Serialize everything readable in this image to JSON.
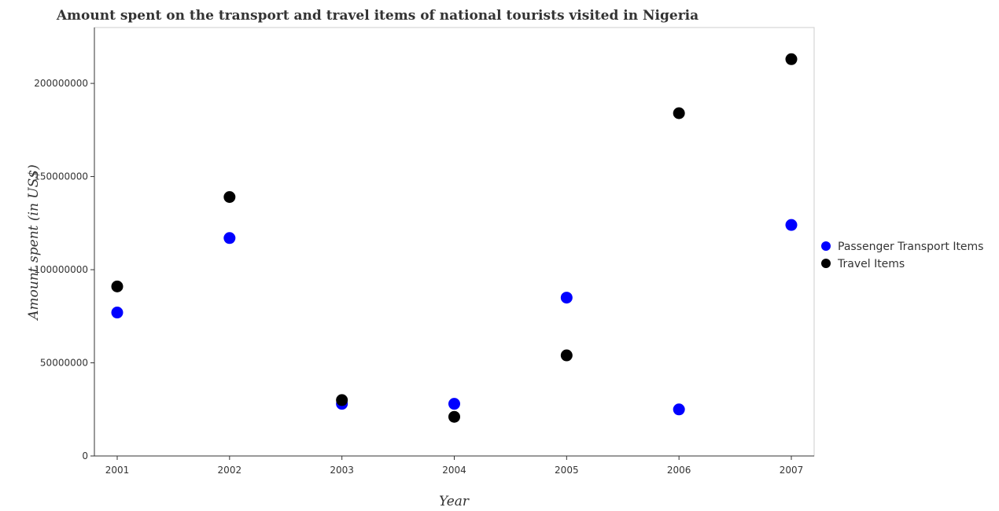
{
  "chart_data": {
    "type": "scatter",
    "title": "Amount spent on the transport and travel items of national tourists visited in Nigeria",
    "xlabel": "Year",
    "ylabel": "Amount spent (in US$)",
    "x": [
      "2001",
      "2002",
      "2003",
      "2004",
      "2005",
      "2006",
      "2007"
    ],
    "ylim": [
      0,
      230000000
    ],
    "yticks": [
      0,
      50000000,
      100000000,
      150000000,
      200000000
    ],
    "ytick_labels": [
      "0",
      "50000000",
      "100000000",
      "150000000",
      "200000000"
    ],
    "grid": false,
    "legend_position": "right",
    "series": [
      {
        "name": "Passenger Transport Items",
        "color": "#0000ff",
        "values": [
          77000000,
          117000000,
          28000000,
          28000000,
          85000000,
          25000000,
          124000000
        ]
      },
      {
        "name": "Travel Items",
        "color": "#000000",
        "values": [
          91000000,
          139000000,
          30000000,
          21000000,
          54000000,
          184000000,
          213000000
        ]
      }
    ]
  }
}
